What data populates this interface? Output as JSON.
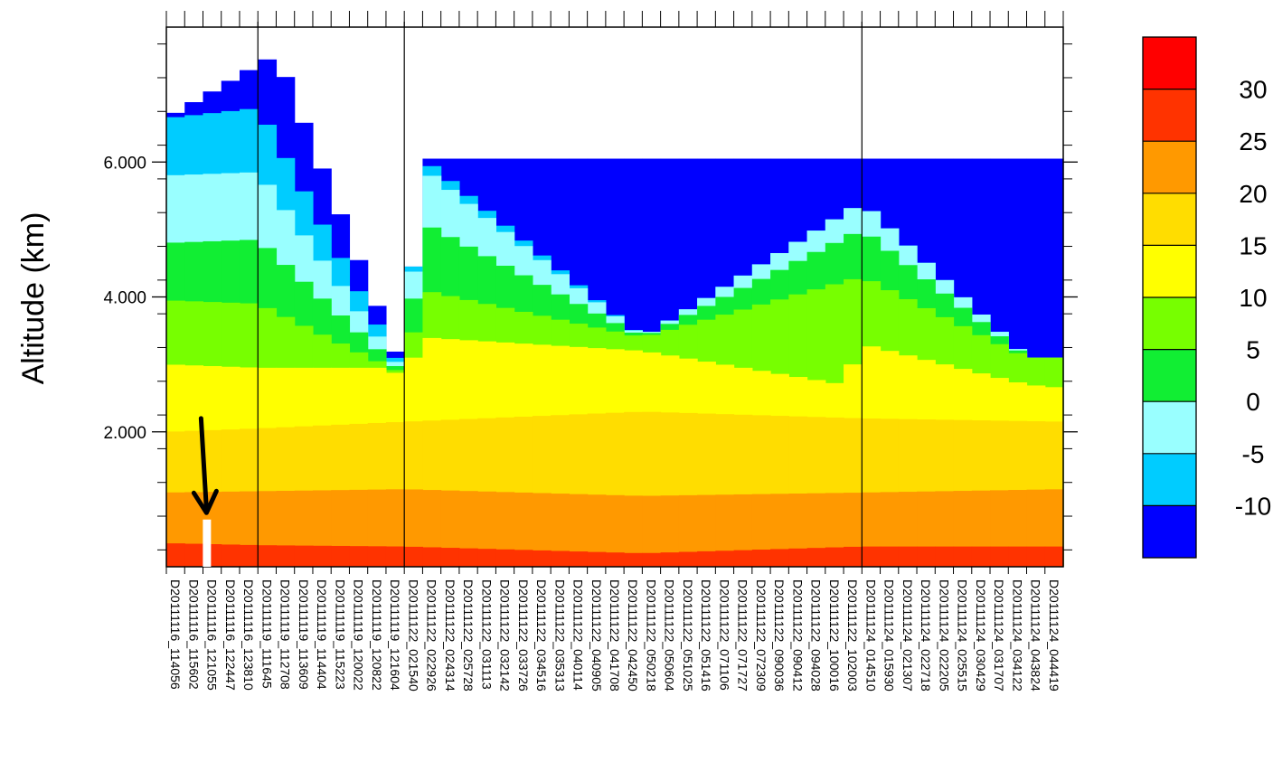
{
  "chart_data": {
    "type": "heatmap",
    "title": "",
    "xlabel": "",
    "ylabel": "Altitude (km)",
    "ylim": [
      0,
      8
    ],
    "yticks": [
      2,
      4,
      6
    ],
    "ytick_labels": [
      "2.000",
      "4.000",
      "6.000"
    ],
    "xtick_labels": [
      "D20111116_114056",
      "D20111116_115602",
      "D20111116_121055",
      "D20111116_122447",
      "D20111116_123810",
      "D20111119_111645",
      "D20111119_112708",
      "D20111119_113609",
      "D20111119_114404",
      "D20111119_115223",
      "D20111119_120022",
      "D20111119_120822",
      "D20111119_121604",
      "D20111122_021540",
      "D20111122_022926",
      "D20111122_024314",
      "D20111122_025728",
      "D20111122_031113",
      "D20111122_032142",
      "D20111122_033726",
      "D20111122_034516",
      "D20111122_035313",
      "D20111122_040114",
      "D20111122_040905",
      "D20111122_041708",
      "D20111122_042450",
      "D20111122_050218",
      "D20111122_050604",
      "D20111122_051025",
      "D20111122_051416",
      "D20111122_071106",
      "D20111122_071727",
      "D20111122_072309",
      "D20111122_090036",
      "D20111122_090412",
      "D20111122_094028",
      "D20111122_100016",
      "D20111122_102003",
      "D20111124_014510",
      "D20111124_015930",
      "D20111124_021307",
      "D20111124_022718",
      "D20111124_022205",
      "D20111124_025515",
      "D20111124_030429",
      "D20111124_031707",
      "D20111124_034122",
      "D20111124_043824",
      "D20111124_044419"
    ],
    "colorbar": {
      "tick_labels": [
        "30",
        "25",
        "20",
        "15",
        "10",
        "5",
        "0",
        "-5",
        "-10"
      ],
      "colors": [
        "#0000ff",
        "#00ccff",
        "#99ffff",
        "#11ee33",
        "#77ff00",
        "#ffff00",
        "#ffdd00",
        "#ff9900",
        "#ff3300",
        "#ff0000"
      ]
    },
    "layers": [
      {
        "tmin": 25,
        "tmax": 30,
        "color": "#ff3300",
        "x": [
          0,
          5,
          13,
          26,
          38,
          49
        ],
        "top": [
          0.35,
          0.32,
          0.3,
          0.2,
          0.3,
          0.3
        ]
      },
      {
        "tmin": 20,
        "tmax": 25,
        "color": "#ff9900",
        "x": [
          0,
          5,
          13,
          26,
          38,
          49
        ],
        "top": [
          1.1,
          1.12,
          1.15,
          1.05,
          1.1,
          1.15
        ]
      },
      {
        "tmin": 15,
        "tmax": 20,
        "color": "#ffdd00",
        "x": [
          0,
          5,
          13,
          26,
          38,
          49
        ],
        "top": [
          2.0,
          2.05,
          2.15,
          2.3,
          2.2,
          2.15
        ]
      },
      {
        "tmin": 10,
        "tmax": 15,
        "color": "#ffff00",
        "x": [
          0,
          5,
          12,
          13,
          14,
          26,
          37,
          38,
          47,
          49
        ],
        "top": [
          3.0,
          2.95,
          2.95,
          2.8,
          3.4,
          3.2,
          2.7,
          3.3,
          2.7,
          2.65
        ]
      },
      {
        "tmin": 5,
        "tmax": 10,
        "color": "#77ff00",
        "x": [
          0,
          5,
          13,
          14,
          26,
          38,
          47
        ],
        "top": [
          3.95,
          3.9,
          2.85,
          4.1,
          3.4,
          4.3,
          3.1
        ]
      },
      {
        "tmin": 0,
        "tmax": 5,
        "color": "#11ee33",
        "x": [
          0,
          5,
          13,
          14,
          26,
          38,
          47
        ],
        "top": [
          4.8,
          4.85,
          2.85,
          5.1,
          3.4,
          5.0,
          3.1
        ]
      },
      {
        "tmin": -5,
        "tmax": 0,
        "color": "#99ffff",
        "x": [
          0,
          5,
          13,
          14,
          26,
          38,
          47
        ],
        "top": [
          5.8,
          5.85,
          2.85,
          5.9,
          3.4,
          5.4,
          3.1
        ]
      },
      {
        "tmin": -10,
        "tmax": -5,
        "color": "#00ccff",
        "x": [
          0,
          5,
          13,
          14,
          26,
          38,
          47
        ],
        "top": [
          6.65,
          6.8,
          2.85,
          6.05,
          3.4,
          5.4,
          3.1
        ]
      },
      {
        "tmin": -15,
        "tmax": -10,
        "color": "#0000ff",
        "x": [
          0,
          6,
          13,
          14
        ],
        "top": [
          6.65,
          7.6,
          2.85,
          6.05
        ]
      }
    ],
    "cross_sections": [
      {
        "from_index": 0,
        "to_index": 5,
        "label": ""
      },
      {
        "from_index": 5,
        "to_index": 13,
        "label": ""
      },
      {
        "from_index": 13,
        "to_index": 38,
        "label": ""
      },
      {
        "from_index": 38,
        "to_index": 49,
        "label": ""
      }
    ],
    "annotations": [
      {
        "type": "arrow",
        "color": "#000000",
        "x_index": 1.5,
        "y_from": 2.2,
        "y_to": 0.8,
        "note_text": ""
      }
    ],
    "grid": false,
    "legend": "colorbar-right"
  }
}
